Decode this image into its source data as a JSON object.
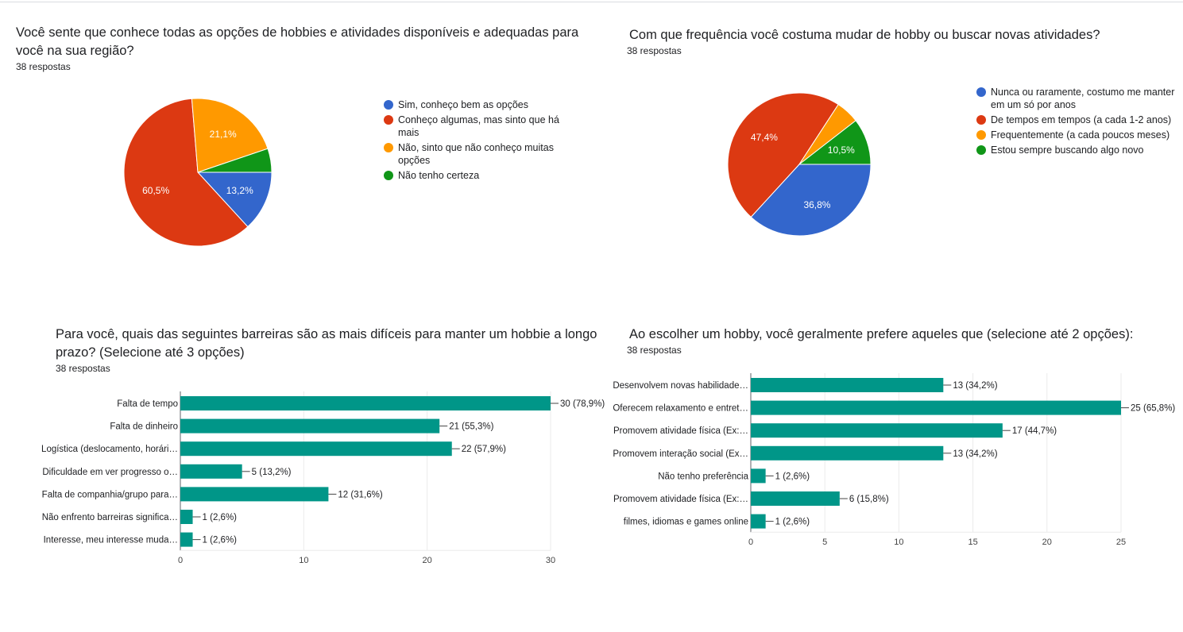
{
  "colors": {
    "blue": "#3366cc",
    "red": "#dc3912",
    "orange": "#ff9900",
    "green": "#109618",
    "bar": "#009688"
  },
  "chart_data": [
    {
      "type": "pie",
      "title": "Você sente que conhece todas as opções de hobbies e atividades disponíveis e adequadas para você na sua região?",
      "subtitle": "38 respostas",
      "legend_position": "right",
      "slices": [
        {
          "label": "Sim, conheço bem as opções",
          "value": 13.2,
          "display": "13,2%",
          "color": "#3366cc"
        },
        {
          "label": "Conheço algumas, mas sinto que há mais",
          "value": 60.5,
          "display": "60,5%",
          "color": "#dc3912"
        },
        {
          "label": "Não, sinto que não conheço muitas opções",
          "value": 21.1,
          "display": "21,1%",
          "color": "#ff9900"
        },
        {
          "label": "Não tenho certeza",
          "value": 5.2,
          "display": "",
          "color": "#109618"
        }
      ]
    },
    {
      "type": "pie",
      "title": "Com que frequência você costuma mudar de hobby ou buscar novas atividades?",
      "subtitle": "38 respostas",
      "legend_position": "right",
      "slices": [
        {
          "label": "Nunca ou raramente, costumo me manter em um só por anos",
          "value": 36.8,
          "display": "36,8%",
          "color": "#3366cc"
        },
        {
          "label": "De tempos em tempos (a cada 1-2 anos)",
          "value": 47.4,
          "display": "47,4%",
          "color": "#dc3912"
        },
        {
          "label": "Frequentemente (a cada poucos meses)",
          "value": 5.3,
          "display": "",
          "color": "#ff9900"
        },
        {
          "label": "Estou sempre buscando algo novo",
          "value": 10.5,
          "display": "10,5%",
          "color": "#109618"
        }
      ]
    },
    {
      "type": "bar",
      "orientation": "horizontal",
      "title": "Para você, quais das seguintes barreiras são as mais difíceis para manter um hobbie a longo prazo? (Selecione até 3 opções)",
      "subtitle": "38 respostas",
      "xlim": [
        0,
        30
      ],
      "ticks": [
        0,
        10,
        20,
        30
      ],
      "grid": true,
      "categories": [
        "Falta de tempo",
        "Falta de dinheiro",
        "Logística (deslocamento, horári…",
        "Dificuldade em ver progresso o…",
        "Falta de companhia/grupo para…",
        "Não enfrento barreiras significa…",
        "Interesse, meu interesse muda…"
      ],
      "values": [
        30,
        21,
        22,
        5,
        12,
        1,
        1
      ],
      "labels": [
        "30 (78,9%)",
        "21 (55,3%)",
        "22 (57,9%)",
        "5 (13,2%)",
        "12 (31,6%)",
        "1 (2,6%)",
        "1 (2,6%)"
      ]
    },
    {
      "type": "bar",
      "orientation": "horizontal",
      "title": "Ao escolher um hobby, você geralmente prefere aqueles que (selecione até 2 opções):",
      "subtitle": "38 respostas",
      "xlim": [
        0,
        25
      ],
      "ticks": [
        0,
        5,
        10,
        15,
        20,
        25
      ],
      "grid": true,
      "categories": [
        "Desenvolvem novas habilidade…",
        "Oferecem relaxamento e entret…",
        "Promovem atividade física (Ex:…",
        "Promovem interação social (Ex…",
        "Não tenho preferência",
        "Promovem atividade física (Ex:…",
        "filmes, idiomas e games online"
      ],
      "values": [
        13,
        25,
        17,
        13,
        1,
        6,
        1
      ],
      "labels": [
        "13 (34,2%)",
        "25 (65,8%)",
        "17 (44,7%)",
        "13 (34,2%)",
        "1 (2,6%)",
        "6 (15,8%)",
        "1 (2,6%)"
      ]
    }
  ]
}
